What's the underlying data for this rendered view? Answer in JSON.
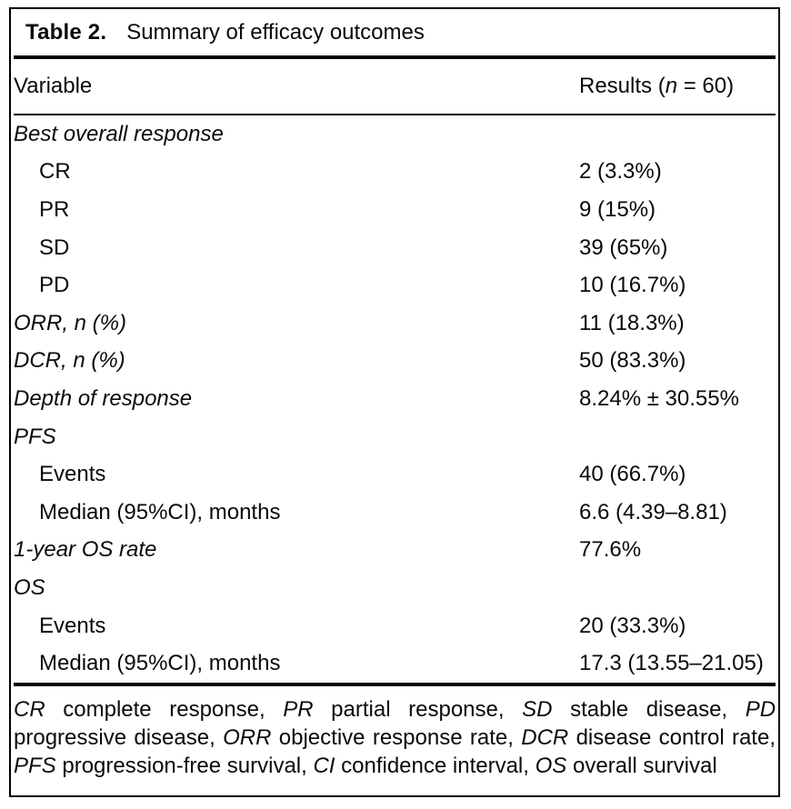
{
  "table": {
    "title": {
      "label": "Table 2.",
      "caption": "Summary of efficacy outcomes"
    },
    "header": {
      "variable": "Variable",
      "results_prefix": "Results (",
      "results_n": "n",
      "results_suffix": " = 60)"
    },
    "rows": [
      {
        "label": "Best overall response",
        "value": ""
      },
      {
        "label": "CR",
        "value": "2 (3.3%)"
      },
      {
        "label": "PR",
        "value": "9 (15%)"
      },
      {
        "label": "SD",
        "value": "39 (65%)"
      },
      {
        "label": "PD",
        "value": "10 (16.7%)"
      },
      {
        "label": "ORR, n (%)",
        "value": "11 (18.3%)"
      },
      {
        "label": "DCR, n (%)",
        "value": "50 (83.3%)"
      },
      {
        "label": "Depth of response",
        "value": "8.24% ± 30.55%"
      },
      {
        "label": "PFS",
        "value": ""
      },
      {
        "label": "Events",
        "value": "40 (66.7%)"
      },
      {
        "label": "Median (95%CI), months",
        "value": "6.6 (4.39–8.81)"
      },
      {
        "label": "1-year OS rate",
        "value": "77.6%"
      },
      {
        "label": "OS",
        "value": ""
      },
      {
        "label": "Events",
        "value": "20 (33.3%)"
      },
      {
        "label": "Median (95%CI), months",
        "value": "17.3 (13.55–21.05)"
      }
    ],
    "footnote": [
      {
        "abbr": "CR",
        "desc": "complete response,"
      },
      {
        "abbr": "PR",
        "desc": "partial response,"
      },
      {
        "abbr": "SD",
        "desc": "stable disease,"
      },
      {
        "abbr": "PD",
        "desc": "progressive disease,"
      },
      {
        "abbr": "ORR",
        "desc": "objective response rate,"
      },
      {
        "abbr": "DCR",
        "desc": "disease control rate,"
      },
      {
        "abbr": "PFS",
        "desc": "progression-free survival,"
      },
      {
        "abbr": "CI",
        "desc": "confidence interval,"
      },
      {
        "abbr": "OS",
        "desc": "overall survival"
      }
    ]
  }
}
